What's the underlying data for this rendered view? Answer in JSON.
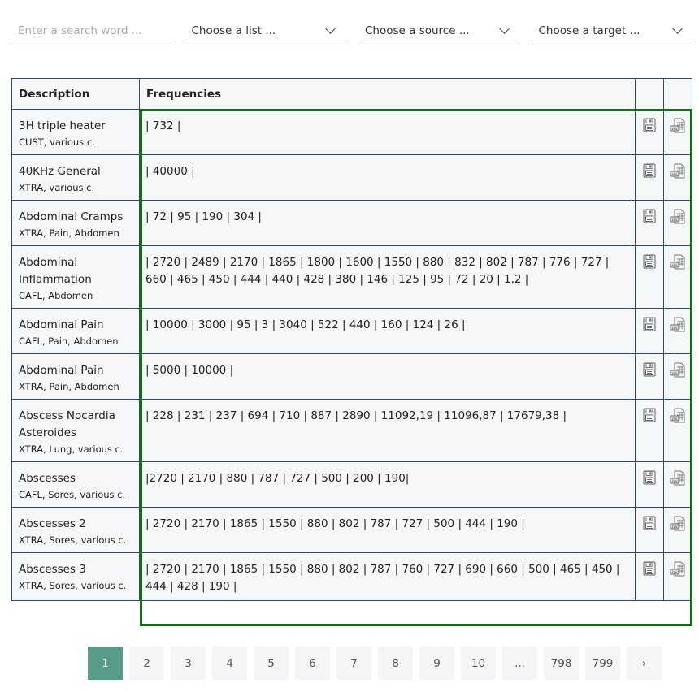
{
  "filters": {
    "search_placeholder": "Enter a search word ...",
    "list": "Choose a list ...",
    "source": "Choose a source ...",
    "target": "Choose a target ..."
  },
  "table": {
    "headers": {
      "description": "Description",
      "frequencies": "Frequencies"
    },
    "rows": [
      {
        "name": "3H triple heater",
        "tags": "CUST, various c.",
        "freq": "| 732 |"
      },
      {
        "name": "40KHz General",
        "tags": "XTRA, various c.",
        "freq": "| 40000 |"
      },
      {
        "name": "Abdominal Cramps",
        "tags": "XTRA, Pain, Abdomen",
        "freq": "| 72 | 95 | 190 | 304 |"
      },
      {
        "name": "Abdominal Inflammation",
        "tags": "CAFL, Abdomen",
        "freq": "| 2720 | 2489 | 2170 | 1865 | 1800 | 1600 | 1550 | 880 | 832 | 802 | 787 | 776 | 727 | 660 | 465 | 450 | 444 | 440 | 428 | 380 | 146 | 125 | 95 | 72 | 20 | 1,2 |"
      },
      {
        "name": "Abdominal Pain",
        "tags": "CAFL, Pain, Abdomen",
        "freq": "| 10000 | 3000 | 95 | 3 | 3040 | 522 | 440 | 160 | 124 | 26 |"
      },
      {
        "name": "Abdominal Pain",
        "tags": "XTRA, Pain, Abdomen",
        "freq": "| 5000 | 10000 |"
      },
      {
        "name": "Abscess Nocardia Asteroides",
        "tags": "XTRA, Lung, various c.",
        "freq": "| 228 | 231 | 237 | 694 | 710 | 887 | 2890 | 11092,19 | 11096,87 | 17679,38 |"
      },
      {
        "name": "Abscesses",
        "tags": "CAFL, Sores, various c.",
        "freq": "|2720 | 2170 | 880 | 787 | 727 | 500 | 200 | 190|"
      },
      {
        "name": "Abscesses 2",
        "tags": "XTRA, Sores, various c.",
        "freq": "| 2720 | 2170 | 1865 | 1550 | 880 | 802 | 787 | 727 | 500 | 444 | 190 |"
      },
      {
        "name": "Abscesses 3",
        "tags": "XTRA, Sores, various c.",
        "freq": "| 2720 | 2170 | 1865 | 1550 | 880 | 802 | 787 | 760 | 727 | 690 | 660 | 500 | 465 | 450 | 444 | 428 | 190 |"
      }
    ],
    "row_icons": [
      "save-icon",
      "csv-export-icon"
    ],
    "highlight_color": "#137013"
  },
  "pagination": {
    "pages": [
      "1",
      "2",
      "3",
      "4",
      "5",
      "6",
      "7",
      "8",
      "9",
      "10",
      "...",
      "798",
      "799",
      "›"
    ],
    "active": "1",
    "active_color": "#579b89"
  }
}
